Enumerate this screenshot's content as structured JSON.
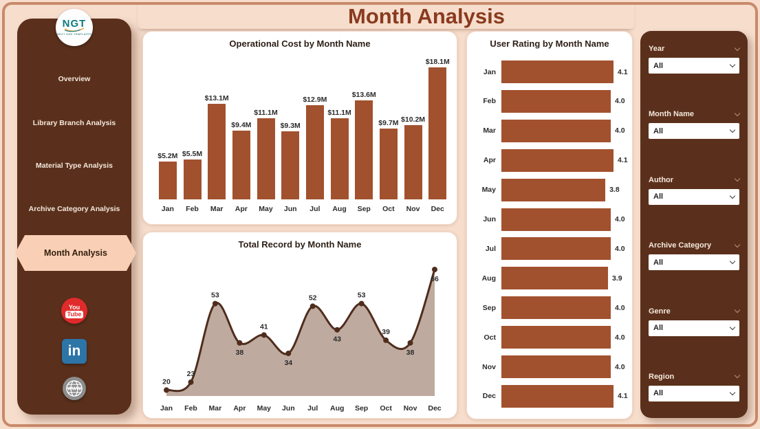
{
  "page": {
    "title": "Month Analysis"
  },
  "logo": {
    "text": "NGT",
    "subtext": "NEXT GEN TEMPLATES"
  },
  "sidebar": {
    "items": [
      {
        "label": "Overview",
        "active": false
      },
      {
        "label": "Library Branch Analysis",
        "active": false
      },
      {
        "label": "Material Type Analysis",
        "active": false
      },
      {
        "label": "Archive Category Analysis",
        "active": false
      },
      {
        "label": "Month Analysis",
        "active": true
      }
    ],
    "social": [
      {
        "name": "youtube",
        "line1": "You",
        "line2": "Tube"
      },
      {
        "name": "linkedin",
        "text": "in"
      },
      {
        "name": "website",
        "text": "WWW"
      }
    ]
  },
  "filters": [
    {
      "label": "Year",
      "value": "All"
    },
    {
      "label": "Month Name",
      "value": "All"
    },
    {
      "label": "Author",
      "value": "All"
    },
    {
      "label": "Archive Category",
      "value": "All"
    },
    {
      "label": "Genre",
      "value": "All"
    },
    {
      "label": "Region",
      "value": "All"
    }
  ],
  "colors": {
    "background": "#f6ddcc",
    "frame_border": "#c88a6b",
    "panel_bg": "#5a301c",
    "active_nav_bg": "#f9cfb5",
    "title_text": "#8a3a1e",
    "bar": "#a2512e",
    "line": "#4f2d1d",
    "area_fill": "#bca59a",
    "label_text": "#2b2b2b"
  },
  "chart_data": [
    {
      "type": "bar",
      "title": "Operational Cost by Month Name",
      "categories": [
        "Jan",
        "Feb",
        "Mar",
        "Apr",
        "May",
        "Jun",
        "Jul",
        "Aug",
        "Sep",
        "Oct",
        "Nov",
        "Dec"
      ],
      "values": [
        5.2,
        5.5,
        13.1,
        9.4,
        11.1,
        9.3,
        12.9,
        11.1,
        13.6,
        9.7,
        10.2,
        18.1
      ],
      "labels": [
        "$5.2M",
        "$5.5M",
        "$13.1M",
        "$9.4M",
        "$11.1M",
        "$9.3M",
        "$12.9M",
        "$11.1M",
        "$13.6M",
        "$9.7M",
        "$10.2M",
        "$18.1M"
      ],
      "xlabel": "Month Name",
      "ylabel": "Operational Cost",
      "ylim": [
        0,
        18.1
      ],
      "grid": false,
      "legend": false
    },
    {
      "type": "area",
      "title": "Total Record by Month Name",
      "categories": [
        "Jan",
        "Feb",
        "Mar",
        "Apr",
        "May",
        "Jun",
        "Jul",
        "Aug",
        "Sep",
        "Oct",
        "Nov",
        "Dec"
      ],
      "values": [
        20,
        23,
        53,
        38,
        41,
        34,
        52,
        43,
        53,
        39,
        38,
        66
      ],
      "label_positions": [
        "above",
        "above",
        "above",
        "below",
        "above",
        "below",
        "above",
        "below",
        "above",
        "above",
        "below",
        "below"
      ],
      "xlabel": "Month Name",
      "ylabel": "Total Record",
      "ylim": [
        18,
        70
      ],
      "grid": false,
      "legend": false,
      "smooth": true
    },
    {
      "type": "bar-horizontal",
      "title": "User Rating by Month Name",
      "categories": [
        "Jan",
        "Feb",
        "Mar",
        "Apr",
        "May",
        "Jun",
        "Jul",
        "Aug",
        "Sep",
        "Oct",
        "Nov",
        "Dec"
      ],
      "values": [
        4.1,
        4.0,
        4.0,
        4.1,
        3.8,
        4.0,
        4.0,
        3.9,
        4.0,
        4.0,
        4.0,
        4.1
      ],
      "labels": [
        "4.1",
        "4.0",
        "4.0",
        "4.1",
        "3.8",
        "4.0",
        "4.0",
        "3.9",
        "4.0",
        "4.0",
        "4.0",
        "4.1"
      ],
      "xlabel": "User Rating",
      "ylabel": "Month Name",
      "xlim": [
        0,
        4.1
      ],
      "grid": false,
      "legend": false
    }
  ]
}
